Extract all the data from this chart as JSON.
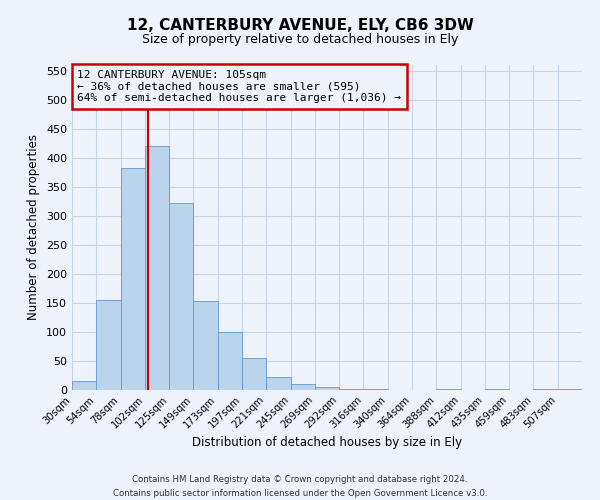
{
  "title": "12, CANTERBURY AVENUE, ELY, CB6 3DW",
  "subtitle": "Size of property relative to detached houses in Ely",
  "xlabel": "Distribution of detached houses by size in Ely",
  "ylabel": "Number of detached properties",
  "bar_color": "#bad4ee",
  "bar_edge_color": "#6699cc",
  "bin_labels": [
    "30sqm",
    "54sqm",
    "78sqm",
    "102sqm",
    "125sqm",
    "149sqm",
    "173sqm",
    "197sqm",
    "221sqm",
    "245sqm",
    "269sqm",
    "292sqm",
    "316sqm",
    "340sqm",
    "364sqm",
    "388sqm",
    "412sqm",
    "435sqm",
    "459sqm",
    "483sqm",
    "507sqm"
  ],
  "bar_heights": [
    15,
    155,
    383,
    420,
    323,
    153,
    100,
    55,
    22,
    10,
    5,
    2,
    1,
    0,
    0,
    1,
    0,
    1,
    0,
    2,
    2
  ],
  "ylim": [
    0,
    560
  ],
  "yticks": [
    0,
    50,
    100,
    150,
    200,
    250,
    300,
    350,
    400,
    450,
    500,
    550
  ],
  "property_line_x": 3.125,
  "property_line_color": "#cc0000",
  "annotation_title": "12 CANTERBURY AVENUE: 105sqm",
  "annotation_line1": "← 36% of detached houses are smaller (595)",
  "annotation_line2": "64% of semi-detached houses are larger (1,036) →",
  "annotation_box_color": "#cc0000",
  "footnote1": "Contains HM Land Registry data © Crown copyright and database right 2024.",
  "footnote2": "Contains public sector information licensed under the Open Government Licence v3.0.",
  "background_color": "#eef2fb",
  "grid_color": "#c8d4ea"
}
